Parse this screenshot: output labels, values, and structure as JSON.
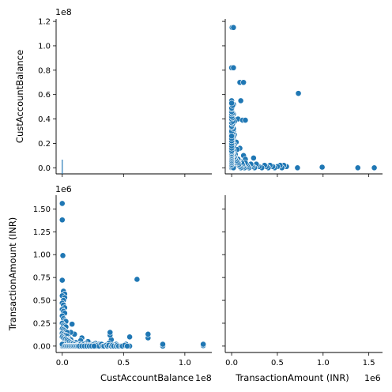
{
  "chart_data": {
    "type": "scatter",
    "subtype": "pairplot",
    "variables": [
      "CustAccountBalance",
      "TransactionAmount (INR)"
    ],
    "point_color": "#1f77b4",
    "grid": false,
    "legend": "none",
    "balance_axis": {
      "label": "CustAccountBalance",
      "offset_text": "1e8",
      "range": [
        -0.05,
        1.22
      ],
      "ticks": [
        0.0,
        0.2,
        0.4,
        0.6,
        0.8,
        1.0,
        1.2
      ],
      "tick_labels": [
        "0.0",
        "0.2",
        "0.4",
        "0.6",
        "0.8",
        "1.0",
        "1.2"
      ],
      "x_ticks": [
        0.0,
        0.5,
        1.0
      ],
      "x_tick_labels": [
        "0.0",
        "0.5",
        "1.0"
      ]
    },
    "amount_axis": {
      "label": "TransactionAmount (INR)",
      "offset_text": "1e6",
      "range": [
        -0.07,
        1.65
      ],
      "ticks": [
        0.0,
        0.25,
        0.5,
        0.75,
        1.0,
        1.25,
        1.5
      ],
      "tick_labels": [
        "0.00",
        "0.25",
        "0.50",
        "0.75",
        "1.00",
        "1.25",
        "1.50"
      ],
      "x_ticks": [
        0.0,
        0.5,
        1.0,
        1.5
      ],
      "x_tick_labels": [
        "0.0",
        "0.5",
        "1.0",
        "1.5"
      ]
    },
    "diag_hist_balance": {
      "bins": [
        -0.005,
        0.005
      ],
      "counts": [
        1
      ]
    },
    "points": [
      [
        1.15,
        0.005
      ],
      [
        1.15,
        0.02
      ],
      [
        0.82,
        0.0
      ],
      [
        0.82,
        0.02
      ],
      [
        0.7,
        0.09
      ],
      [
        0.7,
        0.13
      ],
      [
        0.61,
        0.73
      ],
      [
        0.55,
        0.0
      ],
      [
        0.55,
        0.1
      ],
      [
        0.52,
        0.02
      ],
      [
        0.5,
        0.0
      ],
      [
        0.47,
        0.0
      ],
      [
        0.44,
        0.02
      ],
      [
        0.43,
        0.0
      ],
      [
        0.4,
        0.07
      ],
      [
        0.39,
        0.12
      ],
      [
        0.39,
        0.15
      ],
      [
        0.38,
        0.03
      ],
      [
        0.36,
        0.0
      ],
      [
        0.34,
        0.01
      ],
      [
        0.32,
        0.0
      ],
      [
        0.31,
        0.01
      ],
      [
        0.3,
        0.02
      ],
      [
        0.29,
        0.0
      ],
      [
        0.28,
        0.01
      ],
      [
        0.27,
        0.03
      ],
      [
        0.26,
        0.0
      ],
      [
        0.25,
        0.01
      ],
      [
        0.24,
        0.0
      ],
      [
        0.23,
        0.02
      ],
      [
        0.22,
        0.0
      ],
      [
        0.21,
        0.05
      ],
      [
        0.2,
        0.0
      ],
      [
        0.19,
        0.03
      ],
      [
        0.18,
        0.0
      ],
      [
        0.17,
        0.01
      ],
      [
        0.16,
        0.09
      ],
      [
        0.15,
        0.0
      ],
      [
        0.15,
        0.06
      ],
      [
        0.14,
        0.02
      ],
      [
        0.13,
        0.0
      ],
      [
        0.12,
        0.0
      ],
      [
        0.11,
        0.04
      ],
      [
        0.1,
        0.0
      ],
      [
        0.1,
        0.13
      ],
      [
        0.09,
        0.02
      ],
      [
        0.08,
        0.0
      ],
      [
        0.08,
        0.24
      ],
      [
        0.07,
        0.01
      ],
      [
        0.07,
        0.15
      ],
      [
        0.06,
        0.0
      ],
      [
        0.06,
        0.05
      ],
      [
        0.05,
        0.02
      ],
      [
        0.05,
        0.1
      ],
      [
        0.04,
        0.0
      ],
      [
        0.04,
        0.03
      ],
      [
        0.03,
        0.06
      ],
      [
        0.03,
        0.0
      ],
      [
        0.02,
        0.0
      ],
      [
        0.02,
        0.02
      ],
      [
        0.01,
        0.0
      ],
      [
        0.01,
        0.2
      ],
      [
        0.005,
        0.0
      ],
      [
        0.0,
        0.0
      ],
      [
        0.0,
        0.01
      ],
      [
        0.0,
        0.02
      ],
      [
        0.0,
        1.56
      ],
      [
        0.0,
        1.38
      ],
      [
        0.005,
        0.99
      ],
      [
        0.0,
        0.72
      ],
      [
        0.01,
        0.6
      ],
      [
        0.02,
        0.57
      ],
      [
        0.0,
        0.55
      ],
      [
        0.02,
        0.53
      ],
      [
        0.01,
        0.5
      ],
      [
        0.0,
        0.47
      ],
      [
        0.01,
        0.45
      ],
      [
        0.02,
        0.42
      ],
      [
        0.0,
        0.4
      ],
      [
        0.01,
        0.38
      ],
      [
        0.02,
        0.36
      ],
      [
        0.0,
        0.33
      ],
      [
        0.01,
        0.3
      ],
      [
        0.02,
        0.28
      ],
      [
        0.03,
        0.27
      ],
      [
        0.0,
        0.25
      ],
      [
        0.01,
        0.23
      ],
      [
        0.02,
        0.22
      ],
      [
        0.03,
        0.21
      ],
      [
        0.0,
        0.19
      ],
      [
        0.01,
        0.18
      ],
      [
        0.02,
        0.17
      ],
      [
        0.03,
        0.16
      ],
      [
        0.04,
        0.15
      ],
      [
        0.0,
        0.14
      ],
      [
        0.01,
        0.13
      ],
      [
        0.02,
        0.12
      ],
      [
        0.03,
        0.12
      ],
      [
        0.04,
        0.11
      ],
      [
        0.05,
        0.08
      ],
      [
        0.06,
        0.07
      ],
      [
        0.07,
        0.07
      ],
      [
        0.0,
        0.1
      ],
      [
        0.01,
        0.09
      ],
      [
        0.02,
        0.08
      ],
      [
        0.03,
        0.08
      ],
      [
        0.04,
        0.07
      ],
      [
        0.05,
        0.06
      ],
      [
        0.06,
        0.05
      ],
      [
        0.07,
        0.04
      ],
      [
        0.08,
        0.03
      ],
      [
        0.09,
        0.03
      ],
      [
        0.1,
        0.02
      ],
      [
        0.11,
        0.02
      ],
      [
        0.12,
        0.01
      ],
      [
        0.13,
        0.01
      ],
      [
        0.14,
        0.01
      ],
      [
        0.15,
        0.02
      ],
      [
        0.16,
        0.01
      ],
      [
        0.17,
        0.0
      ],
      [
        0.18,
        0.02
      ],
      [
        0.19,
        0.01
      ],
      [
        0.2,
        0.01
      ],
      [
        0.21,
        0.0
      ],
      [
        0.22,
        0.01
      ],
      [
        0.23,
        0.0
      ],
      [
        0.24,
        0.01
      ],
      [
        0.25,
        0.0
      ],
      [
        0.26,
        0.02
      ],
      [
        0.27,
        0.01
      ],
      [
        0.28,
        0.0
      ],
      [
        0.29,
        0.01
      ],
      [
        0.3,
        0.0
      ],
      [
        0.32,
        0.02
      ],
      [
        0.33,
        0.0
      ],
      [
        0.34,
        0.0
      ],
      [
        0.36,
        0.01
      ],
      [
        0.37,
        0.0
      ],
      [
        0.38,
        0.01
      ],
      [
        0.4,
        0.0
      ],
      [
        0.41,
        0.01
      ],
      [
        0.42,
        0.0
      ],
      [
        0.44,
        0.0
      ],
      [
        0.45,
        0.01
      ],
      [
        0.46,
        0.0
      ],
      [
        0.48,
        0.0
      ],
      [
        0.49,
        0.0
      ],
      [
        0.51,
        0.01
      ],
      [
        0.53,
        0.0
      ],
      [
        0.02,
        0.0
      ],
      [
        0.03,
        0.0
      ],
      [
        0.04,
        0.0
      ],
      [
        0.05,
        0.0
      ],
      [
        0.06,
        0.0
      ],
      [
        0.07,
        0.0
      ],
      [
        0.08,
        0.0
      ],
      [
        0.09,
        0.0
      ],
      [
        0.1,
        0.0
      ],
      [
        0.11,
        0.0
      ],
      [
        0.12,
        0.0
      ],
      [
        0.13,
        0.0
      ],
      [
        0.14,
        0.0
      ],
      [
        0.16,
        0.0
      ],
      [
        0.18,
        0.0
      ],
      [
        0.2,
        0.0
      ],
      [
        0.22,
        0.0
      ],
      [
        0.24,
        0.0
      ],
      [
        0.26,
        0.0
      ]
    ]
  }
}
